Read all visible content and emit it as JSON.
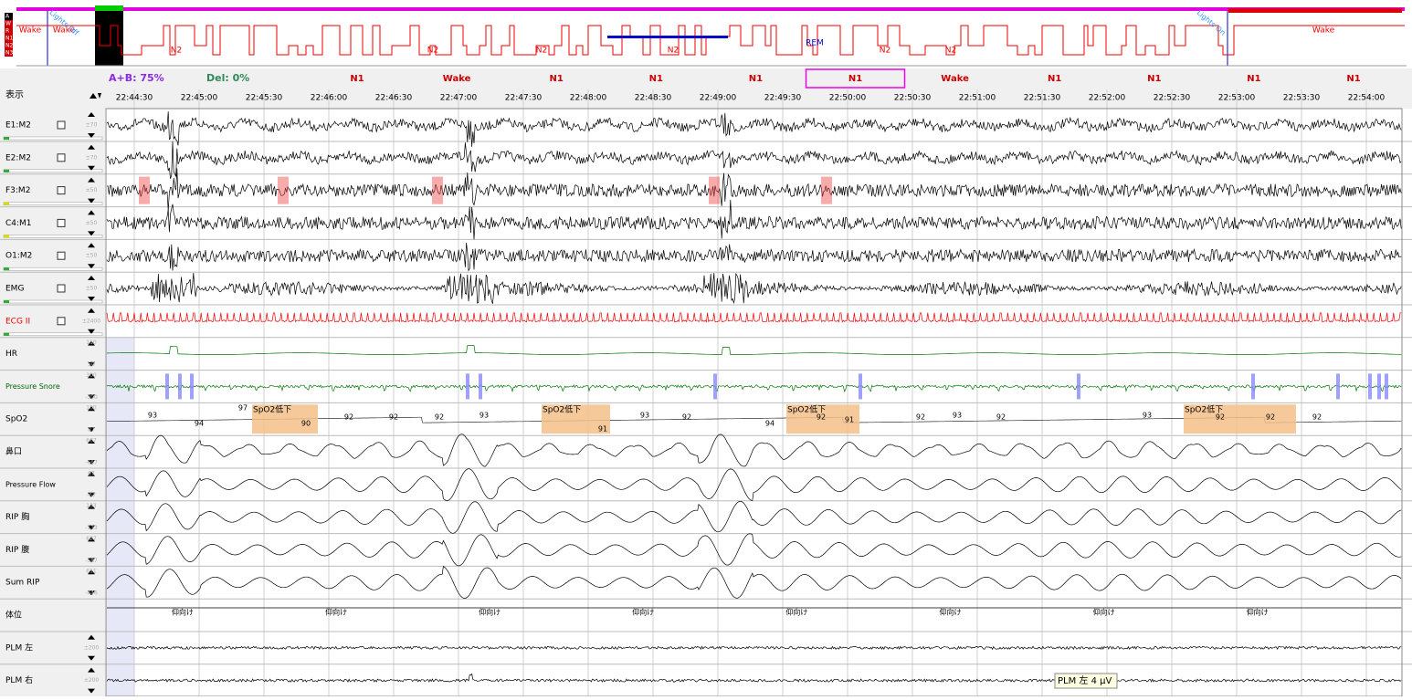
{
  "hypnogram": {
    "legend": [
      "A",
      "W",
      "R",
      "N1",
      "N2",
      "N3"
    ],
    "labels": [
      "Wake",
      "Wake",
      "N2",
      "N2",
      "N2",
      "REM",
      "N2",
      "N2",
      "N2",
      "Wake"
    ],
    "lights_off": "Lights Off",
    "lights_on": "Lights On"
  },
  "summary": {
    "ab": "A+B: 75%",
    "del": "Del: 0%"
  },
  "display_label": "表示",
  "epochs": [
    "N1",
    "Wake",
    "N1",
    "N1",
    "N1",
    "N1",
    "Wake",
    "N1",
    "N1",
    "N1",
    "N1"
  ],
  "times": [
    "22:44:30",
    "22:45:00",
    "22:45:30",
    "22:46:00",
    "22:46:30",
    "22:47:00",
    "22:47:30",
    "22:48:00",
    "22:48:30",
    "22:49:00",
    "22:49:30",
    "22:50:00",
    "22:50:30",
    "22:51:00",
    "22:51:30",
    "22:52:00",
    "22:52:30",
    "22:53:00",
    "22:53:30",
    "22:54:00"
  ],
  "channels": [
    {
      "name": "E1:M2",
      "scale": [
        "±70"
      ]
    },
    {
      "name": "E2:M2",
      "scale": [
        "±70"
      ]
    },
    {
      "name": "F3:M2",
      "scale": [
        "±50"
      ]
    },
    {
      "name": "C4:M1",
      "scale": [
        "±50"
      ]
    },
    {
      "name": "O1:M2",
      "scale": [
        "±50"
      ]
    },
    {
      "name": "EMG",
      "scale": [
        "±50"
      ]
    },
    {
      "name": "ECG II",
      "scale": [
        "±2400"
      ]
    },
    {
      "name": "HR",
      "scale": [
        "110",
        "50"
      ]
    },
    {
      "name": "Pressure Snore",
      "scale": [
        "300",
        "-300"
      ]
    },
    {
      "name": "SpO2",
      "scale": [
        "100",
        "87"
      ]
    },
    {
      "name": "鼻口",
      "scale": [
        "667",
        "-667"
      ]
    },
    {
      "name": "Pressure Flow",
      "scale": [
        "67",
        "-67"
      ]
    },
    {
      "name": "RIP 胸",
      "scale": [
        "133",
        "-133"
      ]
    },
    {
      "name": "RIP 腹",
      "scale": [
        "627",
        "-587"
      ]
    },
    {
      "name": "Sum RIP",
      "scale": [
        "611",
        "-446"
      ]
    },
    {
      "name": "体位",
      "scale": []
    },
    {
      "name": "PLM 左",
      "scale": [
        "±200"
      ]
    },
    {
      "name": "PLM 右",
      "scale": [
        "±200"
      ]
    }
  ],
  "spo2_values": [
    "93",
    "94",
    "97",
    "90",
    "92",
    "92",
    "92",
    "93",
    "91",
    "93",
    "92",
    "94",
    "92",
    "91",
    "92",
    "93",
    "92",
    "93",
    "92",
    "92",
    "92"
  ],
  "spo2_events": [
    "SpO2低下",
    "SpO2低下",
    "SpO2低下",
    "SpO2低下"
  ],
  "posture": [
    "仰向け",
    "仰向け",
    "仰向け",
    "仰向け",
    "仰向け",
    "仰向け",
    "仰向け",
    "仰向け"
  ],
  "tooltip": "PLM 左 4 μV"
}
